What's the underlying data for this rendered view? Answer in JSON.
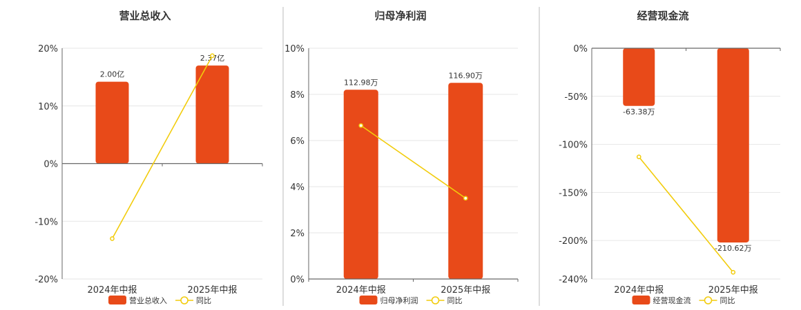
{
  "colors": {
    "bar": "#E84A19",
    "line": "#F2CC0C",
    "grid": "#E6E6E6",
    "axis": "#666666",
    "divider": "#BBBBBB"
  },
  "chart_data": [
    {
      "type": "bar",
      "title": "营业总收入",
      "categories": [
        "2024年中报",
        "2025年中报"
      ],
      "series": [
        {
          "name": "营业总收入",
          "kind": "bar",
          "values": [
            14.2,
            17.0
          ],
          "labels": [
            "2.00亿",
            "2.37亿"
          ]
        },
        {
          "name": "同比",
          "kind": "line",
          "values": [
            -13.0,
            18.7
          ]
        }
      ],
      "ylim": [
        -20,
        20
      ],
      "yticks": [
        20,
        10,
        0,
        -10,
        -20
      ],
      "ytick_labels": [
        "20%",
        "10%",
        "0%",
        "-10%",
        "-20%"
      ],
      "grid": true,
      "legend": "bottom"
    },
    {
      "type": "bar",
      "title": "归母净利润",
      "categories": [
        "2024年中报",
        "2025年中报"
      ],
      "series": [
        {
          "name": "归母净利润",
          "kind": "bar",
          "values": [
            8.2,
            8.5
          ],
          "labels": [
            "112.98万",
            "116.90万"
          ]
        },
        {
          "name": "同比",
          "kind": "line",
          "values": [
            6.65,
            3.5
          ]
        }
      ],
      "ylim": [
        0,
        10
      ],
      "yticks": [
        10,
        8,
        6,
        4,
        2,
        0
      ],
      "ytick_labels": [
        "10%",
        "8%",
        "6%",
        "4%",
        "2%",
        "0%"
      ],
      "grid": true,
      "legend": "bottom"
    },
    {
      "type": "bar",
      "title": "经营现金流",
      "categories": [
        "2024年中报",
        "2025年中报"
      ],
      "series": [
        {
          "name": "经营现金流",
          "kind": "bar",
          "values": [
            -60,
            -202
          ],
          "labels": [
            "-63.38万",
            "-210.62万"
          ]
        },
        {
          "name": "同比",
          "kind": "line",
          "values": [
            -113,
            -233
          ]
        }
      ],
      "ylim": [
        -240,
        0
      ],
      "yticks": [
        0,
        -50,
        -100,
        -150,
        -200,
        -240
      ],
      "ytick_labels": [
        "0%",
        "-50%",
        "-100%",
        "-150%",
        "-200%",
        "-240%"
      ],
      "grid": true,
      "legend": "bottom"
    }
  ]
}
